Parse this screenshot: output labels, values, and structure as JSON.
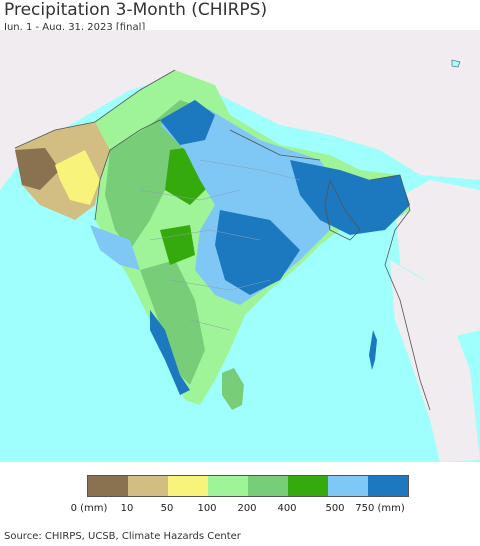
{
  "title": "Precipitation 3-Month (CHIRPS)",
  "subtitle": "Jun. 1 - Aug. 31, 2023 [final]",
  "legend": {
    "colors": [
      "#8a7250",
      "#d2bd82",
      "#f8f37a",
      "#9ff498",
      "#78cd78",
      "#34aa0c",
      "#7fc8f6",
      "#1c78bf"
    ],
    "labels": [
      "0 (mm)",
      "10",
      "50",
      "100",
      "200",
      "400",
      "500",
      "750 (mm)"
    ]
  },
  "footer": "Source: CHIRPS, UCSB, Climate Hazards Center",
  "colors": {
    "ocean": "#9ffffd",
    "outside_land": "#f0ecf0",
    "border": "#555555"
  }
}
